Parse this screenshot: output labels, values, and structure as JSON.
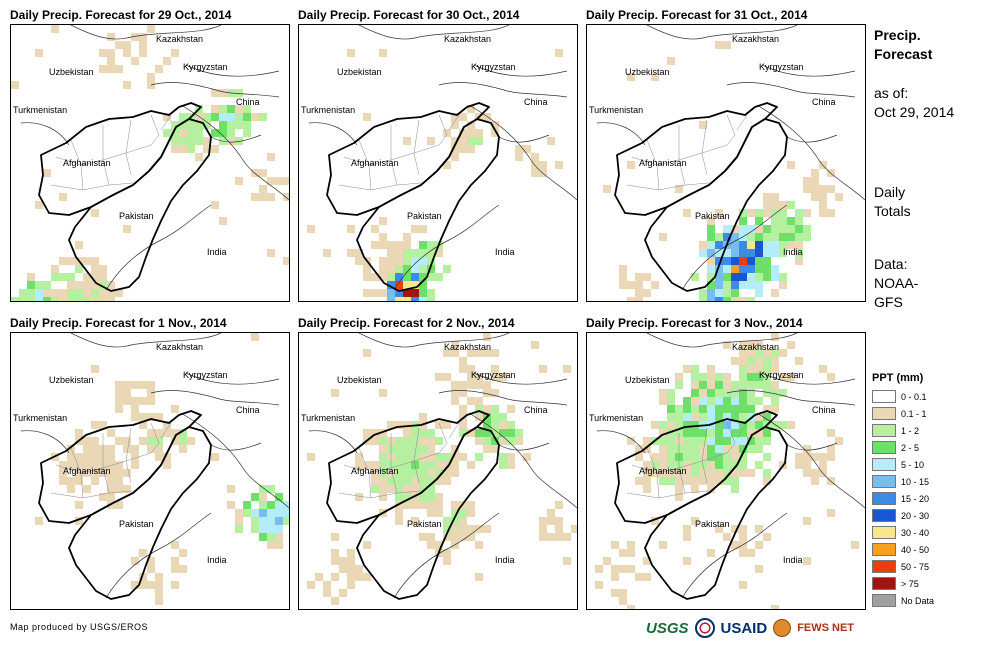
{
  "panels": [
    {
      "title": "Daily Precip. Forecast for 29 Oct., 2014"
    },
    {
      "title": "Daily Precip. Forecast for 30 Oct., 2014"
    },
    {
      "title": "Daily Precip. Forecast for 31 Oct., 2014"
    },
    {
      "title": "Daily Precip. Forecast for 1 Nov., 2014"
    },
    {
      "title": "Daily Precip. Forecast for 2 Nov., 2014"
    },
    {
      "title": "Daily Precip. Forecast for 3 Nov., 2014"
    }
  ],
  "country_labels": {
    "kazakhstan": "Kazakhstan",
    "uzbekistan": "Uzbekistan",
    "kyrgyzstan": "Kyrgyzstan",
    "china": "China",
    "turkmenistan": "Turkmenistan",
    "afghanistan": "Afghanistan",
    "pakistan": "Pakistan",
    "india": "India"
  },
  "sidebar": {
    "title_line1": "Precip.",
    "title_line2": "Forecast",
    "asof_line1": "as of:",
    "asof_line2": "Oct 29, 2014",
    "daily_line1": "Daily",
    "daily_line2": "Totals",
    "data_line1": "Data:",
    "data_line2": "NOAA-",
    "data_line3": "GFS"
  },
  "legend": {
    "title": "PPT (mm)",
    "items": [
      {
        "label": "0 - 0.1",
        "color": "#ffffff"
      },
      {
        "label": "0.1 - 1",
        "color": "#ead7b5"
      },
      {
        "label": "1 - 2",
        "color": "#b4f0a0"
      },
      {
        "label": "2 - 5",
        "color": "#6ee06a"
      },
      {
        "label": "5 - 10",
        "color": "#b4ecf8"
      },
      {
        "label": "10 - 15",
        "color": "#78bdf0"
      },
      {
        "label": "15 - 20",
        "color": "#3c8ce6"
      },
      {
        "label": "20 - 30",
        "color": "#1a55d2"
      },
      {
        "label": "30 - 40",
        "color": "#fae68c"
      },
      {
        "label": "40 - 50",
        "color": "#faa01e"
      },
      {
        "label": "50 - 75",
        "color": "#ee3c0a"
      },
      {
        "label": "> 75",
        "color": "#a01414"
      },
      {
        "label": "No Data",
        "color": "#a0a0a0"
      }
    ]
  },
  "credit": "Map produced by USGS/EROS",
  "logos": {
    "usgs": "USGS",
    "usaid": "USAID",
    "fews": "FEWS NET"
  }
}
